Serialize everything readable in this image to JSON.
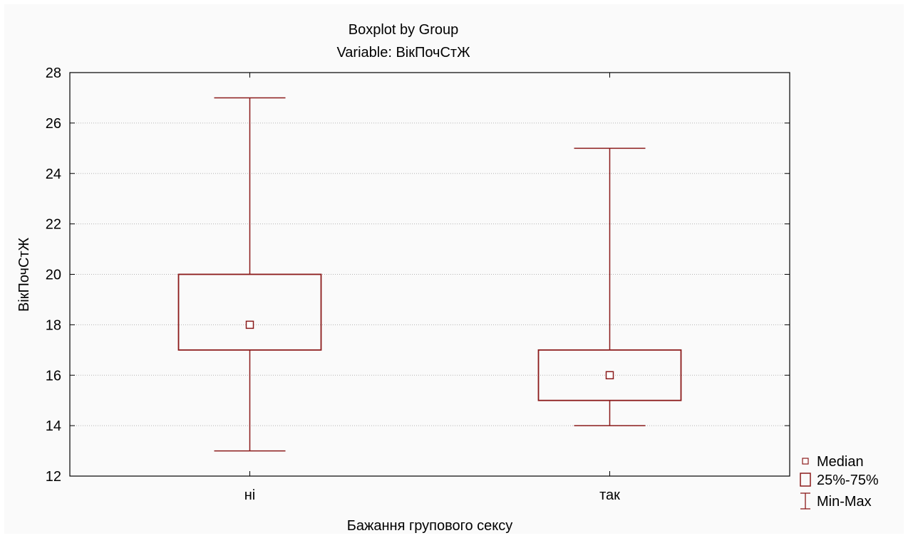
{
  "chart_data": {
    "type": "boxplot",
    "title": "Boxplot by Group",
    "subtitle": "Variable: ВікПочСтЖ",
    "xlabel": "Бажання групового сексу",
    "ylabel": "ВікПочСтЖ",
    "ylim": [
      12,
      28
    ],
    "yticks": [
      "12",
      "14",
      "16",
      "18",
      "20",
      "22",
      "24",
      "26",
      "28"
    ],
    "grid": true,
    "legend_position": "bottom-right",
    "color": "#8b1a1a",
    "categories": [
      "ні",
      "так"
    ],
    "groups": [
      {
        "name": "ні",
        "median": 18,
        "q1": 17,
        "q3": 20,
        "min": 13,
        "max": 27
      },
      {
        "name": "так",
        "median": 16,
        "q1": 15,
        "q3": 17,
        "min": 14,
        "max": 25
      }
    ],
    "legend": [
      {
        "icon": "median-square-icon",
        "label": "Median"
      },
      {
        "icon": "box-icon",
        "label": "25%-75%"
      },
      {
        "icon": "whisker-icon",
        "label": "Min-Max"
      }
    ]
  }
}
